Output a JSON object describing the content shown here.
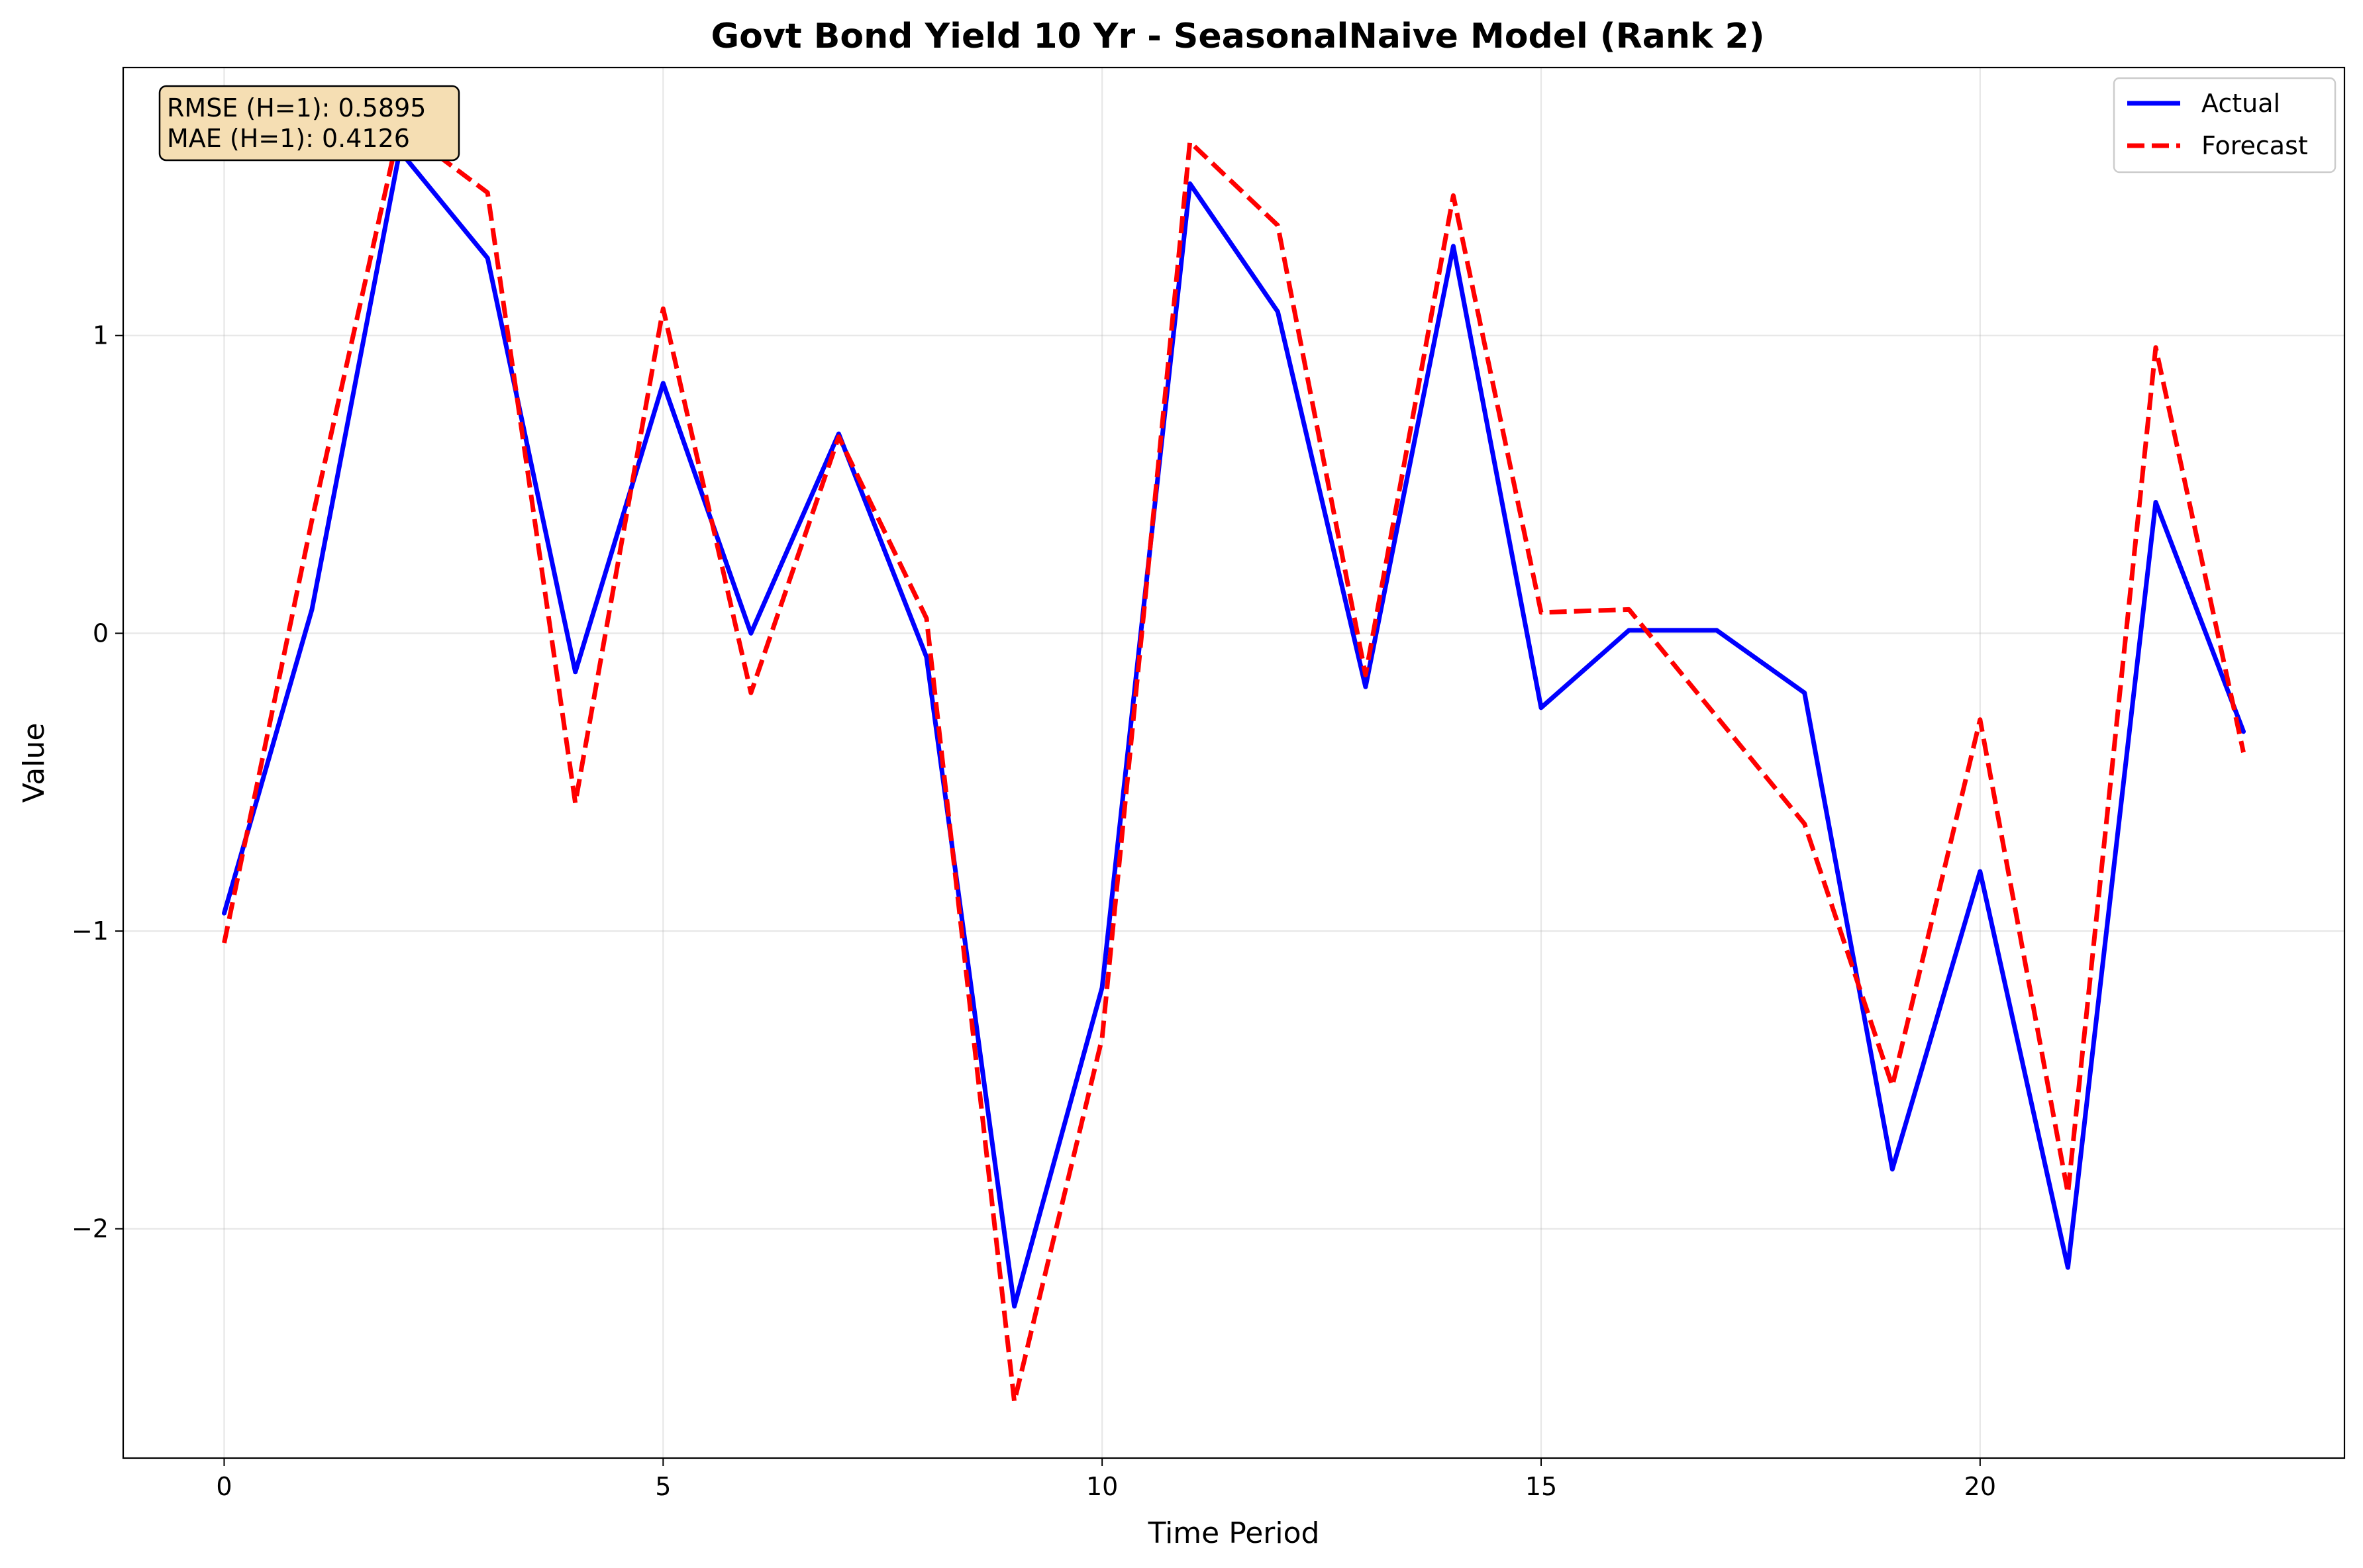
{
  "chart_data": {
    "type": "line",
    "title": "Govt Bond Yield 10 Yr - SeasonalNaive Model (Rank 2)",
    "xlabel": "Time Period",
    "ylabel": "Value",
    "xlim": [
      -1.15,
      24.15
    ],
    "ylim": [
      -2.77,
      1.9
    ],
    "xticks": [
      0,
      5,
      10,
      15,
      20
    ],
    "yticks": [
      -2,
      -1,
      0,
      1
    ],
    "grid": true,
    "legend_position": "top-right",
    "metrics": [
      "RMSE (H=1): 0.5895",
      "MAE (H=1): 0.4126"
    ],
    "x": [
      0,
      1,
      2,
      3,
      4,
      5,
      6,
      7,
      8,
      9,
      10,
      11,
      12,
      13,
      14,
      15,
      16,
      17,
      18,
      19,
      20,
      21,
      22,
      23
    ],
    "series": [
      {
        "name": "Actual",
        "color": "#0000ff",
        "style": "solid",
        "values": [
          -0.94,
          0.08,
          1.62,
          1.26,
          -0.13,
          0.84,
          0.0,
          0.67,
          -0.08,
          -2.26,
          -1.19,
          1.51,
          1.08,
          -0.18,
          1.3,
          -0.25,
          0.01,
          0.01,
          -0.2,
          -1.8,
          -0.8,
          -2.13,
          0.44,
          -0.33
        ]
      },
      {
        "name": "Forecast",
        "color": "#ff0000",
        "style": "dashed",
        "values": [
          -1.04,
          0.38,
          1.7,
          1.48,
          -0.57,
          1.09,
          -0.2,
          0.66,
          0.05,
          -2.58,
          -1.36,
          1.65,
          1.37,
          -0.14,
          1.47,
          0.07,
          0.08,
          -0.28,
          -0.64,
          -1.52,
          -0.29,
          -1.88,
          0.96,
          -0.4
        ]
      }
    ]
  }
}
